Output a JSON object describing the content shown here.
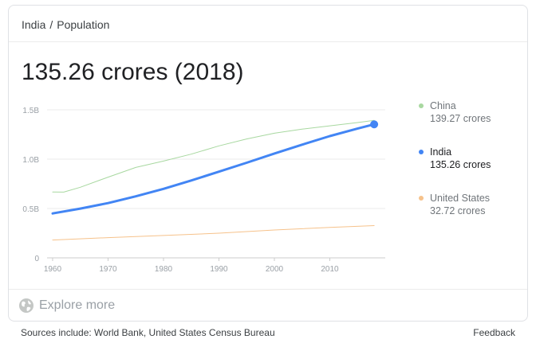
{
  "breadcrumb": {
    "parent": "India",
    "separator": "/",
    "current": "Population"
  },
  "headline": "135.26 crores (2018)",
  "chart_data": {
    "type": "line",
    "title": "",
    "xlabel": "",
    "ylabel": "",
    "x_ticks": [
      1960,
      1970,
      1980,
      1990,
      2000,
      2010
    ],
    "x_tick_labels": [
      "1960",
      "1970",
      "1980",
      "1990",
      "2000",
      "2010"
    ],
    "y_ticks": [
      0,
      0.5,
      1.0,
      1.5
    ],
    "y_tick_labels": [
      "0",
      "0.5B",
      "1.0B",
      "1.5B"
    ],
    "xlim": [
      1959,
      2020
    ],
    "ylim": [
      0,
      1.5
    ],
    "grid": true,
    "legend": "right",
    "series": [
      {
        "name": "China",
        "color": "#a8d8a0",
        "x": [
          1960,
          1962,
          1965,
          1970,
          1975,
          1980,
          1985,
          1990,
          1995,
          2000,
          2005,
          2010,
          2015,
          2018
        ],
        "values": [
          0.667,
          0.666,
          0.715,
          0.818,
          0.916,
          0.981,
          1.051,
          1.135,
          1.205,
          1.263,
          1.304,
          1.338,
          1.371,
          1.393
        ]
      },
      {
        "name": "India",
        "color": "#4285f4",
        "x": [
          1960,
          1965,
          1970,
          1975,
          1980,
          1985,
          1990,
          1995,
          2000,
          2005,
          2010,
          2015,
          2018
        ],
        "values": [
          0.45,
          0.499,
          0.555,
          0.623,
          0.699,
          0.784,
          0.873,
          0.964,
          1.057,
          1.147,
          1.234,
          1.31,
          1.353
        ]
      },
      {
        "name": "United States",
        "color": "#f6c28b",
        "x": [
          1960,
          1970,
          1980,
          1990,
          2000,
          2010,
          2018
        ],
        "values": [
          0.181,
          0.205,
          0.227,
          0.25,
          0.282,
          0.309,
          0.327
        ]
      }
    ]
  },
  "legend": [
    {
      "name": "China",
      "value": "139.27 crores",
      "color": "#a8d8a0"
    },
    {
      "name": "India",
      "value": "135.26 crores",
      "color": "#4285f4"
    },
    {
      "name": "United States",
      "value": "32.72 crores",
      "color": "#f6c28b"
    }
  ],
  "explore": {
    "label": "Explore more",
    "icon": "globe-icon"
  },
  "footer": {
    "sources": "Sources include: World Bank, United States Census Bureau",
    "feedback": "Feedback"
  }
}
